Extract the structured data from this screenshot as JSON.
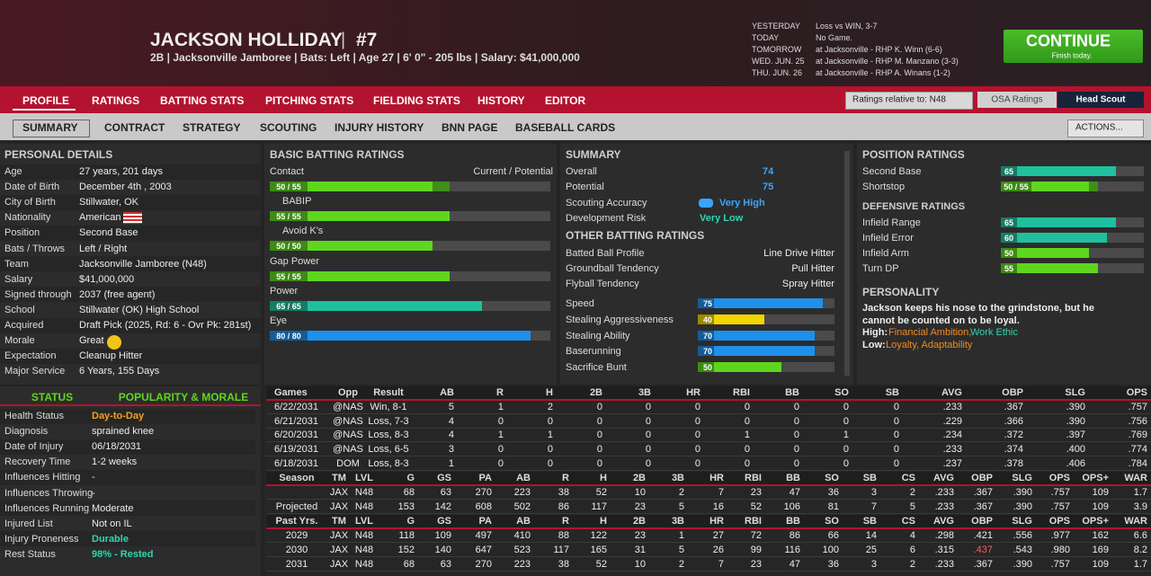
{
  "header": {
    "name": "JACKSON HOLLIDAY",
    "separator": "|",
    "number": "#7",
    "info": "2B | Jacksonville Jamboree | Bats: Left | Age 27 | 6' 0\" - 205 lbs | Salary: $41,000,000"
  },
  "schedule": [
    [
      "YESTERDAY",
      "Loss vs WIN, 3-7"
    ],
    [
      "TODAY",
      "No Game."
    ],
    [
      "TOMORROW",
      "at Jacksonville - RHP K. Winn (6-6)"
    ],
    [
      "WED. JUN. 25",
      "at Jacksonville - RHP M. Manzano (3-3)"
    ],
    [
      "THU. JUN. 26",
      "at Jacksonville - RHP A. Winans (1-2)"
    ]
  ],
  "continue_button": {
    "label": "CONTINUE",
    "sub": "Finish today."
  },
  "tabs": [
    "PROFILE",
    "RATINGS",
    "BATTING STATS",
    "PITCHING STATS",
    "FIELDING STATS",
    "HISTORY",
    "EDITOR"
  ],
  "ratings_select": "Ratings relative to: N48",
  "rating_sources": [
    "OSA Ratings",
    "Head Scout"
  ],
  "subtabs": [
    "SUMMARY",
    "CONTRACT",
    "STRATEGY",
    "SCOUTING",
    "INJURY HISTORY",
    "BNN PAGE",
    "BASEBALL CARDS"
  ],
  "actions": "ACTIONS...",
  "personal_details": {
    "title": "PERSONAL DETAILS",
    "rows": [
      [
        "Age",
        "27 years, 201 days"
      ],
      [
        "Date of Birth",
        "December 4th , 2003"
      ],
      [
        "City of Birth",
        "Stillwater, OK"
      ],
      [
        "Nationality",
        "American"
      ],
      [
        "Position",
        "Second Base"
      ],
      [
        "Bats / Throws",
        "Left / Right"
      ],
      [
        "Team",
        "Jacksonville Jamboree (N48)"
      ],
      [
        "Salary",
        "$41,000,000"
      ],
      [
        "Signed through",
        "2037 (free agent)"
      ],
      [
        "School",
        "Stillwater (OK) High School"
      ],
      [
        "Acquired",
        "Draft Pick (2025, Rd: 6 - Ovr Pk: 281st)"
      ],
      [
        "Morale",
        "Great"
      ],
      [
        "Expectation",
        "Cleanup Hitter"
      ],
      [
        "Major Service",
        "6 Years, 155 Days"
      ]
    ]
  },
  "basic_batting": {
    "title": "BASIC BATTING RATINGS",
    "legend": "Current / Potential",
    "items": [
      {
        "name": "Contact",
        "label": "50 / 55",
        "current": 50,
        "potential": 55
      },
      {
        "name": "BABIP",
        "label": "55 / 55",
        "current": 55,
        "potential": 55
      },
      {
        "name": "Avoid K's",
        "label": "50 / 50",
        "current": 50,
        "potential": 50
      },
      {
        "name": "Gap Power",
        "label": "55 / 55",
        "current": 55,
        "potential": 55
      },
      {
        "name": "Power",
        "label": "65 / 65",
        "current": 65,
        "potential": 65
      },
      {
        "name": "Eye",
        "label": "80 / 80",
        "current": 80,
        "potential": 80
      }
    ]
  },
  "summary": {
    "title": "SUMMARY",
    "rows": [
      [
        "Overall",
        74
      ],
      [
        "Potential",
        75
      ],
      [
        "Scouting Accuracy",
        "Very High"
      ],
      [
        "Development Risk",
        "Very Low"
      ]
    ]
  },
  "other_batting": {
    "title": "OTHER BATTING RATINGS",
    "text_rows": [
      [
        "Batted Ball Profile",
        "Line Drive Hitter"
      ],
      [
        "Groundball Tendency",
        "Pull Hitter"
      ],
      [
        "Flyball Tendency",
        "Spray Hitter"
      ]
    ],
    "bars": [
      [
        "Speed",
        75
      ],
      [
        "Stealing Aggressiveness",
        40
      ],
      [
        "Stealing Ability",
        70
      ],
      [
        "Baserunning",
        70
      ],
      [
        "Sacrifice Bunt",
        50
      ]
    ]
  },
  "position_ratings": {
    "title": "POSITION RATINGS",
    "items": [
      {
        "name": "Second Base",
        "label": "65",
        "current": 65,
        "potential": 65
      },
      {
        "name": "Shortstop",
        "label": "50 / 55",
        "current": 50,
        "potential": 55
      }
    ]
  },
  "defensive_ratings": {
    "title": "DEFENSIVE RATINGS",
    "items": [
      [
        "Infield Range",
        65
      ],
      [
        "Infield Error",
        60
      ],
      [
        "Infield Arm",
        50
      ],
      [
        "Turn DP",
        55
      ]
    ]
  },
  "personality": {
    "title": "PERSONALITY",
    "text": "Jackson keeps his nose to the grindstone, but he cannot be counted on to be loyal.",
    "high_label": "High:",
    "high": [
      "Financial Ambition,",
      "Work Ethic"
    ],
    "low_label": "Low:",
    "low": "Loyalty, Adaptability"
  },
  "status": {
    "tabs": [
      "STATUS",
      "POPULARITY & MORALE"
    ],
    "rows": [
      {
        "label": "Health Status",
        "value": "Day-to-Day",
        "color": "#f0a020"
      },
      {
        "label": "Diagnosis",
        "value": "sprained knee"
      },
      {
        "label": "Date of Injury",
        "value": "06/18/2031"
      },
      {
        "label": "Recovery Time",
        "value": "1-2 weeks"
      },
      {
        "label": "Influences Hitting",
        "value": "-"
      },
      {
        "label": "Influences Throwing",
        "value": "-"
      },
      {
        "label": "Influences Running",
        "value": "Moderate"
      },
      {
        "label": "Injured List",
        "value": "Not on IL"
      },
      {
        "label": "Injury Proneness",
        "value": "Durable",
        "color": "#2fd6b0"
      },
      {
        "label": "Rest Status",
        "value": "98% - Rested",
        "color": "#2fd6b0"
      }
    ]
  },
  "games": {
    "header": [
      "Games",
      "Opp",
      "Result",
      "AB",
      "R",
      "H",
      "2B",
      "3B",
      "HR",
      "RBI",
      "BB",
      "SO",
      "SB",
      "AVG",
      "OBP",
      "SLG",
      "OPS"
    ],
    "rows": [
      [
        "6/22/2031",
        "@NAS",
        "Win, 8-1",
        "5",
        "1",
        "2",
        "0",
        "0",
        "0",
        "0",
        "0",
        "0",
        "0",
        ".233",
        ".367",
        ".390",
        ".757"
      ],
      [
        "6/21/2031",
        "@NAS",
        "Loss, 7-3",
        "4",
        "0",
        "0",
        "0",
        "0",
        "0",
        "0",
        "0",
        "0",
        "0",
        ".229",
        ".366",
        ".390",
        ".756"
      ],
      [
        "6/20/2031",
        "@NAS",
        "Loss, 8-3",
        "4",
        "1",
        "1",
        "0",
        "0",
        "0",
        "1",
        "0",
        "1",
        "0",
        ".234",
        ".372",
        ".397",
        ".769"
      ],
      [
        "6/19/2031",
        "@NAS",
        "Loss, 6-5",
        "3",
        "0",
        "0",
        "0",
        "0",
        "0",
        "0",
        "0",
        "0",
        "0",
        ".233",
        ".374",
        ".400",
        ".774"
      ],
      [
        "6/18/2031",
        "DOM",
        "Loss, 8-3",
        "1",
        "0",
        "0",
        "0",
        "0",
        "0",
        "0",
        "0",
        "0",
        "0",
        ".237",
        ".378",
        ".406",
        ".784"
      ]
    ]
  },
  "season": {
    "header": [
      "Season",
      "TM",
      "LVL",
      "G",
      "GS",
      "PA",
      "AB",
      "R",
      "H",
      "2B",
      "3B",
      "HR",
      "RBI",
      "BB",
      "SO",
      "SB",
      "CS",
      "AVG",
      "OBP",
      "SLG",
      "OPS",
      "OPS+",
      "WAR"
    ],
    "rows": [
      [
        null,
        "JAX",
        "N48",
        "68",
        "63",
        "270",
        "223",
        "38",
        "52",
        "10",
        "2",
        "7",
        "23",
        "47",
        "36",
        "3",
        "2",
        ".233",
        ".367",
        ".390",
        ".757",
        "109",
        "1.7"
      ],
      [
        "Projected",
        "JAX",
        "N48",
        "153",
        "142",
        "608",
        "502",
        "86",
        "117",
        "23",
        "5",
        "16",
        "52",
        "106",
        "81",
        "7",
        "5",
        ".233",
        ".367",
        ".390",
        ".757",
        "109",
        "3.9"
      ]
    ]
  },
  "past_years": {
    "header": [
      "Past Yrs.",
      "TM",
      "LVL",
      "G",
      "GS",
      "PA",
      "AB",
      "R",
      "H",
      "2B",
      "3B",
      "HR",
      "RBI",
      "BB",
      "SO",
      "SB",
      "CS",
      "AVG",
      "OBP",
      "SLG",
      "OPS",
      "OPS+",
      "WAR"
    ],
    "rows": [
      [
        "2029",
        "JAX",
        "N48",
        "118",
        "109",
        "497",
        "410",
        "88",
        "122",
        "23",
        "1",
        "27",
        "72",
        "86",
        "66",
        "14",
        "4",
        ".298",
        ".421",
        ".556",
        ".977",
        "162",
        "6.6"
      ],
      [
        "2030",
        "JAX",
        "N48",
        "152",
        "140",
        "647",
        "523",
        "117",
        "165",
        "31",
        "5",
        "26",
        "99",
        "116",
        "100",
        "25",
        "6",
        ".315",
        ".437",
        ".543",
        ".980",
        "169",
        "8.2"
      ],
      [
        "2031",
        "JAX",
        "N48",
        "68",
        "63",
        "270",
        "223",
        "38",
        "52",
        "10",
        "2",
        "7",
        "23",
        "47",
        "36",
        "3",
        "2",
        ".233",
        ".367",
        ".390",
        ".757",
        "109",
        "1.7"
      ]
    ]
  }
}
